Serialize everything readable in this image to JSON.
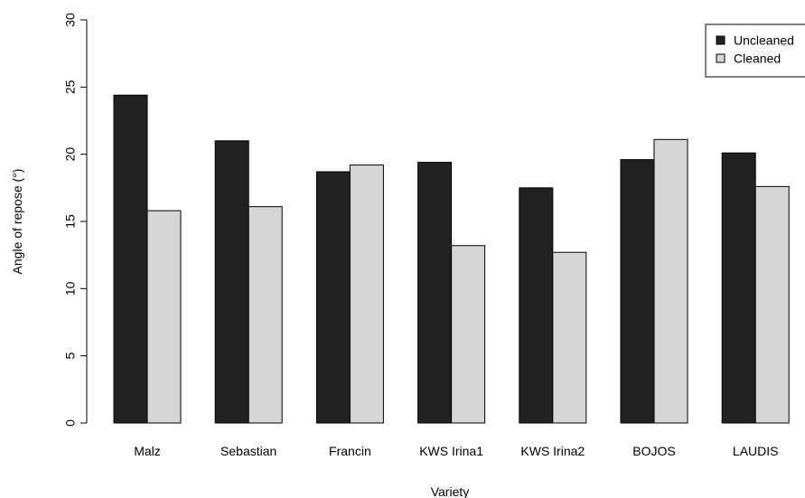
{
  "chart_data": {
    "type": "bar",
    "title": "",
    "xlabel": "Variety",
    "ylabel": "Angle of repose (°)",
    "ylim": [
      0,
      30
    ],
    "yticks": [
      "0",
      "5",
      "10",
      "15",
      "20",
      "25",
      "30"
    ],
    "categories": [
      "Malz",
      "Sebastian",
      "Francin",
      "KWS Irina1",
      "KWS Irina2",
      "BOJOS",
      "LAUDIS"
    ],
    "series": [
      {
        "name": "Uncleaned",
        "color": "#222222",
        "values": [
          24.4,
          21.0,
          18.7,
          19.4,
          17.5,
          19.6,
          20.1
        ]
      },
      {
        "name": "Cleaned",
        "color": "#d6d6d6",
        "values": [
          15.8,
          16.1,
          19.2,
          13.2,
          12.7,
          21.1,
          17.6
        ]
      }
    ],
    "legend_position": "top-right",
    "grid": false
  }
}
